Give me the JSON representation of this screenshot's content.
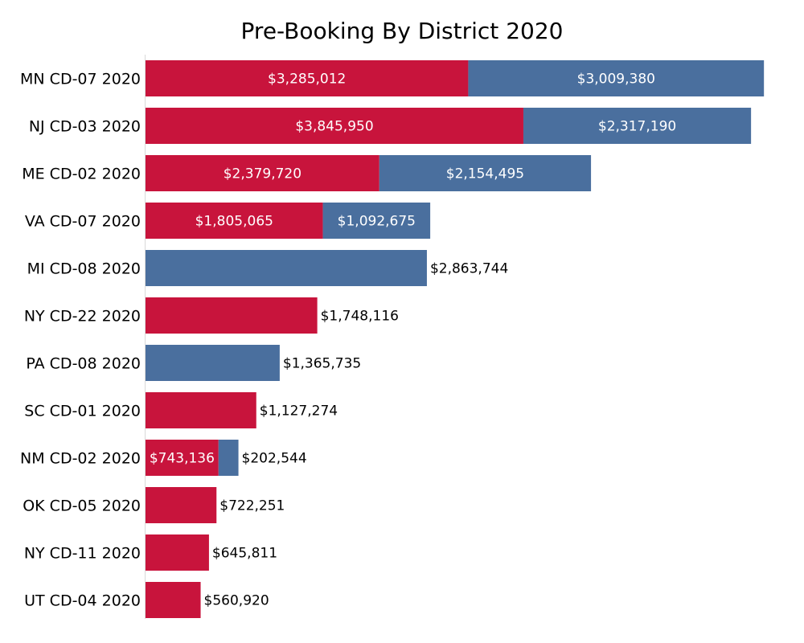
{
  "chart_data": {
    "type": "bar",
    "orientation": "horizontal",
    "stacked": true,
    "title": "Pre-Booking By District 2020",
    "xlabel": "",
    "ylabel": "",
    "xlim": [
      0,
      6500000
    ],
    "grid": false,
    "legend": "none",
    "categories": [
      "MN CD-07 2020",
      "NJ CD-03 2020",
      "ME CD-02 2020",
      "VA CD-07 2020",
      "MI CD-08 2020",
      "NY CD-22 2020",
      "PA CD-08 2020",
      "SC CD-01 2020",
      "NM CD-02 2020",
      "OK CD-05 2020",
      "NY CD-11 2020",
      "UT CD-04 2020"
    ],
    "series": [
      {
        "name": "Red",
        "color": "#C8143C",
        "values": [
          3285012,
          3845950,
          2379720,
          1805065,
          null,
          1748116,
          null,
          1127274,
          743136,
          722251,
          645811,
          560920
        ],
        "labels": [
          "$3,285,012",
          "$3,845,950",
          "$2,379,720",
          "$1,805,065",
          "",
          "$1,748,116",
          "",
          "$1,127,274",
          "$743,136",
          "$722,251",
          "$645,811",
          "$560,920"
        ]
      },
      {
        "name": "Blue",
        "color": "#4A6F9E",
        "values": [
          3009380,
          2317190,
          2154495,
          1092675,
          2863744,
          null,
          1365735,
          null,
          202544,
          null,
          null,
          null
        ],
        "labels": [
          "$3,009,380",
          "$2,317,190",
          "$2,154,495",
          "$1,092,675",
          "$2,863,744",
          "",
          "$1,365,735",
          "",
          "$202,544",
          "",
          "",
          ""
        ]
      }
    ]
  }
}
